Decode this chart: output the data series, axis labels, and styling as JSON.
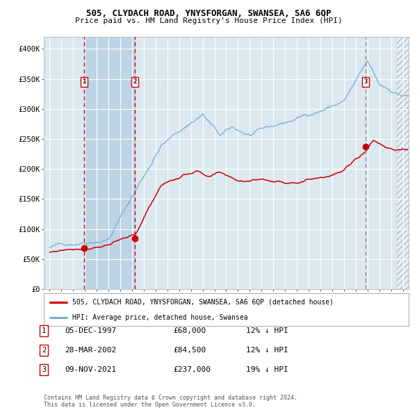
{
  "title1": "505, CLYDACH ROAD, YNYSFORGAN, SWANSEA, SA6 6QP",
  "title2": "Price paid vs. HM Land Registry's House Price Index (HPI)",
  "xlim": [
    1994.5,
    2025.5
  ],
  "ylim": [
    0,
    420000
  ],
  "yticks": [
    0,
    50000,
    100000,
    150000,
    200000,
    250000,
    300000,
    350000,
    400000
  ],
  "ytick_labels": [
    "£0",
    "£50K",
    "£100K",
    "£150K",
    "£200K",
    "£250K",
    "£300K",
    "£350K",
    "£400K"
  ],
  "xticks": [
    1995,
    1996,
    1997,
    1998,
    1999,
    2000,
    2001,
    2002,
    2003,
    2004,
    2005,
    2006,
    2007,
    2008,
    2009,
    2010,
    2011,
    2012,
    2013,
    2014,
    2015,
    2016,
    2017,
    2018,
    2019,
    2020,
    2021,
    2022,
    2023,
    2024,
    2025
  ],
  "transaction1": {
    "date": 1997.92,
    "price": 68000,
    "label": "1"
  },
  "transaction2": {
    "date": 2002.24,
    "price": 84500,
    "label": "2"
  },
  "transaction3": {
    "date": 2021.86,
    "price": 237000,
    "label": "3"
  },
  "vline1_color": "#cc0000",
  "vline2_color": "#cc0000",
  "vline3_color": "#888888",
  "shade1_start": 1997.92,
  "shade1_end": 2002.24,
  "legend_line1": "505, CLYDACH ROAD, YNYSFORGAN, SWANSEA, SA6 6QP (detached house)",
  "legend_line2": "HPI: Average price, detached house, Swansea",
  "table_rows": [
    {
      "num": "1",
      "date": "05-DEC-1997",
      "price": "£68,000",
      "pct": "12% ↓ HPI"
    },
    {
      "num": "2",
      "date": "28-MAR-2002",
      "price": "£84,500",
      "pct": "12% ↓ HPI"
    },
    {
      "num": "3",
      "date": "09-NOV-2021",
      "price": "£237,000",
      "pct": "19% ↓ HPI"
    }
  ],
  "footnote1": "Contains HM Land Registry data © Crown copyright and database right 2024.",
  "footnote2": "This data is licensed under the Open Government Licence v3.0.",
  "hpi_color": "#7aaed4",
  "price_color": "#cc0000",
  "bg_plot": "#dce8f0",
  "bg_fig": "#ffffff",
  "grid_color": "#ffffff",
  "shade_color": "#bdd4e4"
}
